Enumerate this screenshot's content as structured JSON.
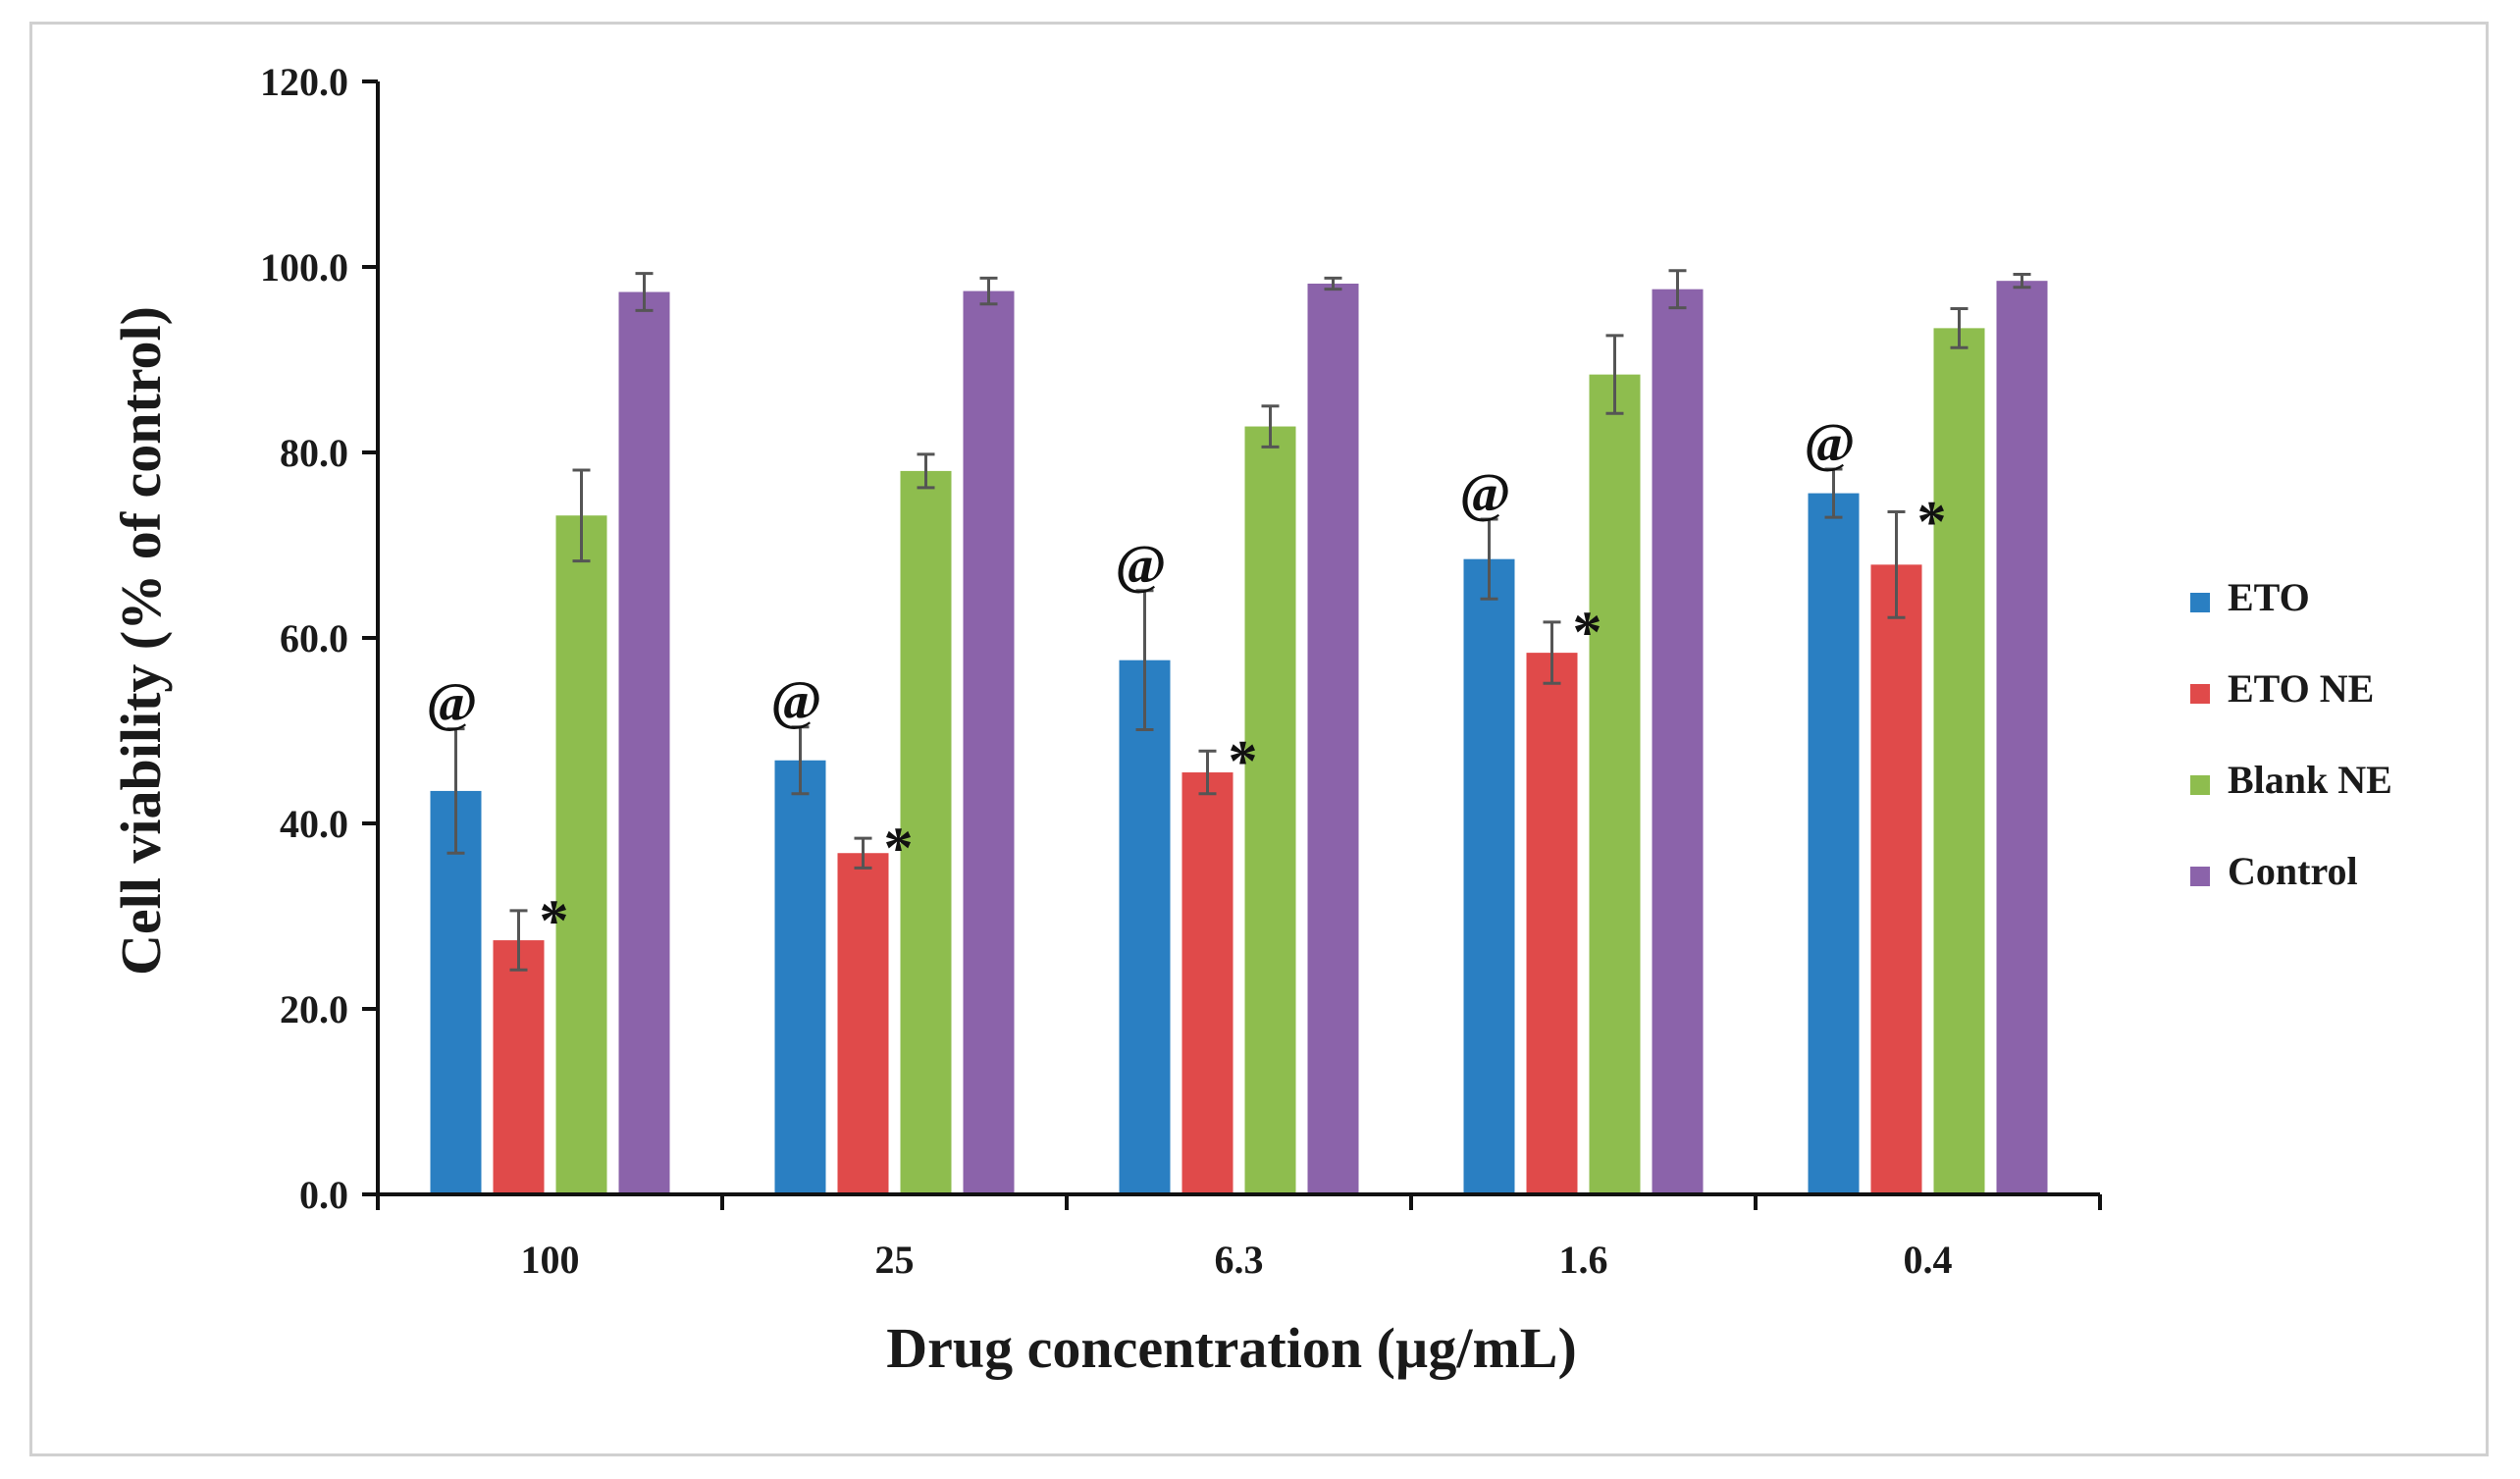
{
  "chart_data": {
    "type": "bar",
    "title": "",
    "xlabel": "Drug concentration (µg/mL)",
    "ylabel": "Cell viability (% of control)",
    "ylim": [
      0,
      120
    ],
    "yticks": [
      "0.0",
      "20.0",
      "40.0",
      "60.0",
      "80.0",
      "100.0",
      "120.0"
    ],
    "categories": [
      "100",
      "25",
      "6.3",
      "1.6",
      "0.4"
    ],
    "series": [
      {
        "name": "ETO",
        "color": "#2a7fc2",
        "values": [
          43.5,
          46.8,
          57.6,
          68.5,
          75.6
        ],
        "errors": [
          6.7,
          3.6,
          7.5,
          4.3,
          2.6
        ]
      },
      {
        "name": "ETO NE",
        "color": "#e04a4a",
        "values": [
          27.4,
          36.8,
          45.5,
          58.4,
          67.9
        ],
        "errors": [
          3.2,
          1.6,
          2.3,
          3.3,
          5.7
        ]
      },
      {
        "name": "Blank NE",
        "color": "#8ebd4e",
        "values": [
          73.2,
          78.0,
          82.8,
          88.4,
          93.4
        ],
        "errors": [
          4.9,
          1.8,
          2.2,
          4.2,
          2.1
        ]
      },
      {
        "name": "Control",
        "color": "#8b63aa",
        "values": [
          97.3,
          97.4,
          98.2,
          97.6,
          98.5
        ],
        "errors": [
          2.0,
          1.4,
          0.6,
          2.0,
          0.7
        ]
      }
    ],
    "annotations": [
      {
        "symbol": "@",
        "series": "ETO",
        "category_index": 0
      },
      {
        "symbol": "@",
        "series": "ETO",
        "category_index": 1
      },
      {
        "symbol": "@",
        "series": "ETO",
        "category_index": 2
      },
      {
        "symbol": "@",
        "series": "ETO",
        "category_index": 3
      },
      {
        "symbol": "@",
        "series": "ETO",
        "category_index": 4
      },
      {
        "symbol": "*",
        "series": "ETO NE",
        "category_index": 0
      },
      {
        "symbol": "*",
        "series": "ETO NE",
        "category_index": 1
      },
      {
        "symbol": "*",
        "series": "ETO NE",
        "category_index": 2
      },
      {
        "symbol": "*",
        "series": "ETO NE",
        "category_index": 3
      },
      {
        "symbol": "*",
        "series": "ETO NE",
        "category_index": 4
      }
    ],
    "legend_position": "right",
    "grid": false
  }
}
